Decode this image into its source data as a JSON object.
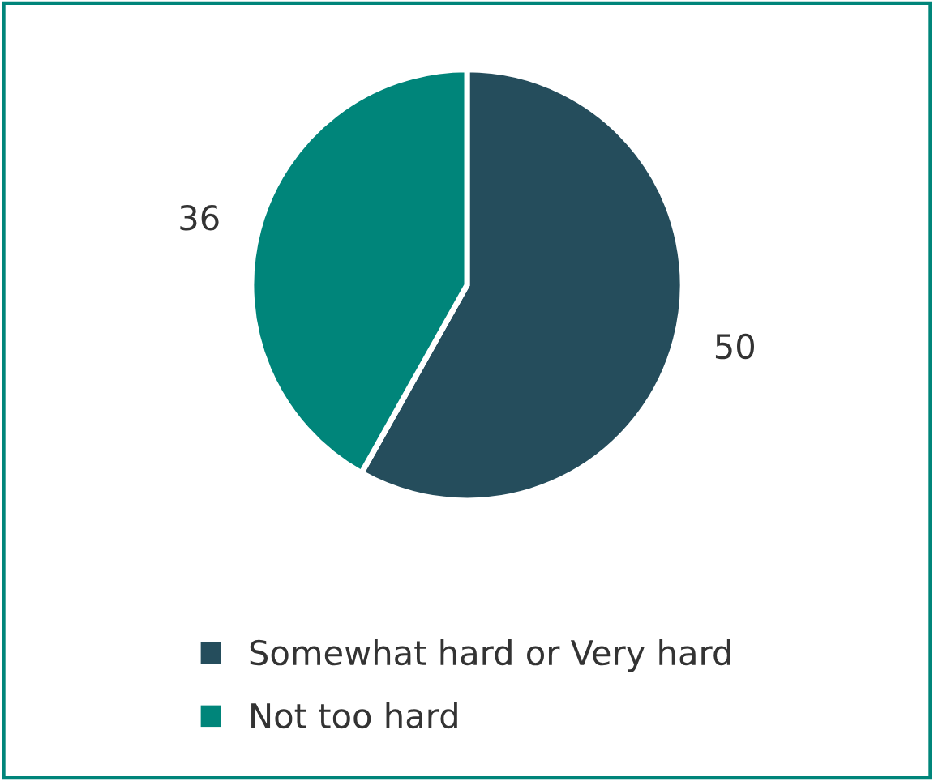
{
  "chart_data": {
    "type": "pie",
    "categories": [
      "Somewhat hard or Very hard",
      "Not too hard"
    ],
    "values": [
      50,
      36
    ],
    "colors": [
      "#254d5c",
      "#00857a"
    ],
    "data_labels": true,
    "legend": "bottom"
  }
}
